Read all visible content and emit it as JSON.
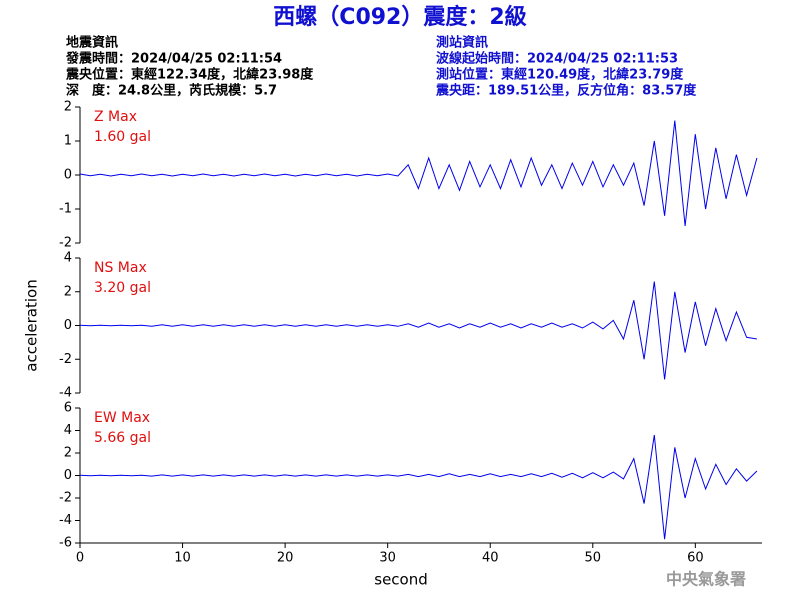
{
  "header": {
    "title": "西螺（C092）震度：2級",
    "left": [
      "地震資訊",
      "發震時間：2024/04/25 02:11:54",
      "震央位置：東經122.34度，北緯23.98度",
      "深　度：24.8公里，芮氏規模：5.7"
    ],
    "right": [
      "測站資訊",
      "波線起始時間：2024/04/25 02:11:53",
      "測站位置：東經120.49度，北緯23.79度",
      "震央距：189.51公里，反方位角：83.57度"
    ]
  },
  "footer": "中央氣象署",
  "chart_data": [
    {
      "type": "line",
      "annotations": [
        "Z Max",
        "1.60 gal"
      ],
      "color": "#0000ee",
      "x": [
        0,
        1,
        2,
        3,
        4,
        5,
        6,
        7,
        8,
        9,
        10,
        11,
        12,
        13,
        14,
        15,
        16,
        17,
        18,
        19,
        20,
        21,
        22,
        23,
        24,
        25,
        26,
        27,
        28,
        29,
        30,
        31,
        32,
        33,
        34,
        35,
        36,
        37,
        38,
        39,
        40,
        41,
        42,
        43,
        44,
        45,
        46,
        47,
        48,
        49,
        50,
        51,
        52,
        53,
        54,
        55,
        56,
        57,
        58,
        59,
        60,
        61,
        62,
        63,
        64,
        65,
        66
      ],
      "values": [
        0.03,
        -0.02,
        0.02,
        -0.03,
        0.02,
        -0.02,
        0.03,
        -0.02,
        0.02,
        -0.03,
        0.02,
        -0.02,
        0.03,
        -0.02,
        0.02,
        -0.03,
        0.02,
        -0.02,
        0.03,
        -0.02,
        0.02,
        -0.03,
        0.02,
        -0.02,
        0.03,
        -0.02,
        0.02,
        -0.03,
        0.02,
        -0.02,
        0.03,
        -0.03,
        0.3,
        -0.4,
        0.5,
        -0.4,
        0.3,
        -0.45,
        0.4,
        -0.35,
        0.3,
        -0.4,
        0.45,
        -0.35,
        0.5,
        -0.3,
        0.3,
        -0.4,
        0.35,
        -0.3,
        0.4,
        -0.35,
        0.3,
        -0.3,
        0.35,
        -0.9,
        1.0,
        -1.2,
        1.6,
        -1.5,
        1.2,
        -1.0,
        0.8,
        -0.7,
        0.6,
        -0.6,
        0.5
      ],
      "xlim": [
        0,
        66.5
      ],
      "ylim": [
        -2,
        2
      ],
      "yticks": [
        -2,
        -1,
        0,
        1,
        2
      ]
    },
    {
      "type": "line",
      "annotations": [
        "NS Max",
        "3.20 gal"
      ],
      "color": "#0000ee",
      "ylabel": "acceleration",
      "x": [
        0,
        1,
        2,
        3,
        4,
        5,
        6,
        7,
        8,
        9,
        10,
        11,
        12,
        13,
        14,
        15,
        16,
        17,
        18,
        19,
        20,
        21,
        22,
        23,
        24,
        25,
        26,
        27,
        28,
        29,
        30,
        31,
        32,
        33,
        34,
        35,
        36,
        37,
        38,
        39,
        40,
        41,
        42,
        43,
        44,
        45,
        46,
        47,
        48,
        49,
        50,
        51,
        52,
        53,
        54,
        55,
        56,
        57,
        58,
        59,
        60,
        61,
        62,
        63,
        64,
        65,
        66
      ],
      "values": [
        0.02,
        -0.02,
        0.02,
        -0.02,
        0.02,
        -0.02,
        0.02,
        -0.05,
        0.05,
        -0.05,
        0.05,
        -0.05,
        0.05,
        -0.05,
        0.05,
        -0.05,
        0.05,
        -0.05,
        0.05,
        -0.05,
        0.05,
        -0.05,
        0.05,
        -0.05,
        0.05,
        -0.05,
        0.05,
        -0.05,
        0.05,
        -0.05,
        0.05,
        -0.05,
        0.1,
        -0.1,
        0.15,
        -0.1,
        0.1,
        -0.15,
        0.1,
        -0.1,
        0.15,
        -0.1,
        0.1,
        -0.15,
        0.1,
        -0.1,
        0.15,
        -0.1,
        0.1,
        -0.15,
        0.2,
        -0.2,
        0.3,
        -0.8,
        1.5,
        -2.0,
        2.6,
        -3.2,
        2.0,
        -1.6,
        1.4,
        -1.2,
        1.0,
        -0.9,
        0.8,
        -0.7,
        -0.8
      ],
      "xlim": [
        0,
        66.5
      ],
      "ylim": [
        -4,
        4
      ],
      "yticks": [
        -4,
        -2,
        0,
        2,
        4
      ]
    },
    {
      "type": "line",
      "annotations": [
        "EW Max",
        "5.66 gal"
      ],
      "color": "#0000ee",
      "xlabel": "second",
      "x": [
        0,
        1,
        2,
        3,
        4,
        5,
        6,
        7,
        8,
        9,
        10,
        11,
        12,
        13,
        14,
        15,
        16,
        17,
        18,
        19,
        20,
        21,
        22,
        23,
        24,
        25,
        26,
        27,
        28,
        29,
        30,
        31,
        32,
        33,
        34,
        35,
        36,
        37,
        38,
        39,
        40,
        41,
        42,
        43,
        44,
        45,
        46,
        47,
        48,
        49,
        50,
        51,
        52,
        53,
        54,
        55,
        56,
        57,
        58,
        59,
        60,
        61,
        62,
        63,
        64,
        65,
        66
      ],
      "values": [
        0.02,
        -0.02,
        0.02,
        -0.02,
        0.02,
        -0.02,
        0.02,
        -0.05,
        0.05,
        -0.05,
        0.05,
        -0.05,
        0.05,
        -0.05,
        0.05,
        -0.05,
        0.05,
        -0.05,
        0.05,
        -0.05,
        0.05,
        -0.05,
        0.05,
        -0.05,
        0.05,
        -0.05,
        0.05,
        -0.05,
        0.05,
        -0.05,
        0.05,
        -0.05,
        0.1,
        -0.1,
        0.1,
        -0.1,
        0.15,
        -0.1,
        0.1,
        -0.1,
        0.15,
        -0.1,
        0.1,
        -0.1,
        0.15,
        -0.1,
        0.2,
        -0.15,
        0.2,
        -0.2,
        0.25,
        -0.2,
        0.3,
        -0.3,
        1.5,
        -2.5,
        3.6,
        -5.66,
        2.5,
        -2.0,
        1.5,
        -1.2,
        1.0,
        -0.8,
        0.6,
        -0.5,
        0.4
      ],
      "xlim": [
        0,
        66.5
      ],
      "ylim": [
        -6,
        6
      ],
      "yticks": [
        -6,
        -4,
        -2,
        0,
        2,
        4,
        6
      ],
      "xticks": [
        0,
        10,
        20,
        30,
        40,
        50,
        60
      ]
    }
  ]
}
